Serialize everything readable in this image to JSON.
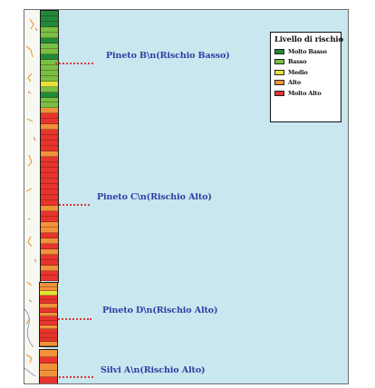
{
  "colors": {
    "sea": "#c9e7ee",
    "label_text": "#2c3fa5",
    "leader_line": "#d73a3a"
  },
  "legend": {
    "title": "Livello di rischio",
    "items": [
      {
        "label": "Molto Basso",
        "color": "#1e8a3a"
      },
      {
        "label": "Basso",
        "color": "#79c043"
      },
      {
        "label": "Medio",
        "color": "#e3e33a"
      },
      {
        "label": "Alto",
        "color": "#f1923a"
      },
      {
        "label": "Molto Alto",
        "color": "#e8342c"
      }
    ]
  },
  "sites": [
    {
      "label": "Pineto B\\n(Rischio Basso)",
      "risk": "Basso"
    },
    {
      "label": "Pineto C\\n(Rischio Alto)",
      "risk": "Alto"
    },
    {
      "label": "Pineto D\\n(Rischio Alto)",
      "risk": "Alto"
    },
    {
      "label": "Silvi A\\n(Rischio Alto)",
      "risk": "Alto"
    }
  ],
  "coastline_segments": [
    {
      "section": "upper",
      "levels": [
        "Molto Basso",
        "Molto Basso",
        "Molto Basso",
        "Basso",
        "Basso",
        "Molto Basso",
        "Basso",
        "Basso",
        "Molto Basso",
        "Basso",
        "Basso",
        "Basso",
        "Basso",
        "Medio",
        "Basso",
        "Molto Basso",
        "Basso",
        "Basso",
        "Alto",
        "Molto Alto",
        "Molto Alto",
        "Alto",
        "Molto Alto",
        "Molto Alto",
        "Molto Alto",
        "Molto Alto",
        "Alto",
        "Molto Alto",
        "Molto Alto",
        "Molto Alto",
        "Molto Alto",
        "Molto Alto",
        "Molto Alto",
        "Molto Alto",
        "Molto Alto",
        "Molto Alto",
        "Alto",
        "Molto Alto",
        "Molto Alto",
        "Alto",
        "Alto",
        "Molto Alto",
        "Alto",
        "Molto Alto",
        "Alto",
        "Molto Alto",
        "Molto Alto",
        "Alto",
        "Molto Alto",
        "Molto Alto"
      ]
    },
    {
      "section": "middle",
      "levels": [
        "Alto",
        "Alto",
        "Medio",
        "Molto Alto",
        "Molto Alto",
        "Alto",
        "Molto Alto",
        "Alto",
        "Molto Alto",
        "Molto Alto",
        "Alto",
        "Molto Alto",
        "Molto Alto",
        "Molto Alto",
        "Alto"
      ]
    },
    {
      "section": "lower",
      "levels": [
        "Alto",
        "Molto Alto",
        "Alto",
        "Alto",
        "Molto Alto"
      ]
    }
  ]
}
